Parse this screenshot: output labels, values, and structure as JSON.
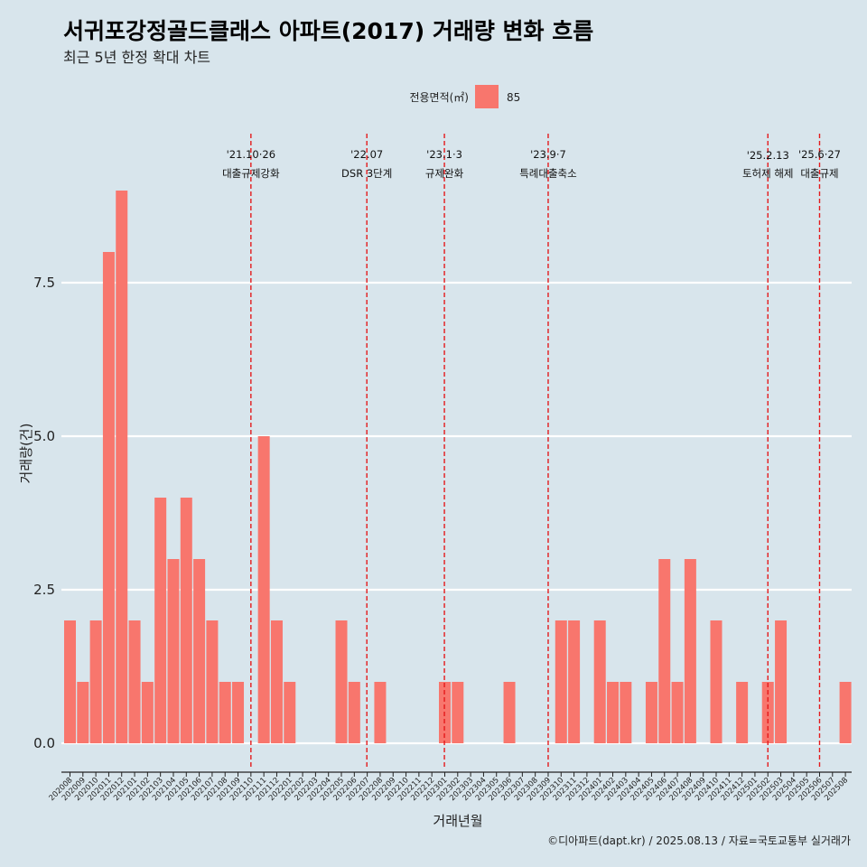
{
  "chart_data": {
    "type": "bar",
    "title": "서귀포강정골드클래스 아파트(2017) 거래량 변화 흐름",
    "subtitle": "최근 5년 한정 확대 차트",
    "xlabel": "거래년월",
    "ylabel": "거래량(건)",
    "ylim": [
      -0.45,
      9.6
    ],
    "yticks": [
      0.0,
      2.5,
      5.0,
      7.5
    ],
    "ytick_labels": [
      "0.0",
      "2.5",
      "5.0",
      "7.5"
    ],
    "grid": "horizontal",
    "legend": {
      "title": "전용면적(㎡)",
      "position": "top",
      "entries": [
        {
          "label": "85",
          "color": "#f8766d"
        }
      ]
    },
    "bar_color": "#f8766d",
    "categories": [
      "202008",
      "202009",
      "202010",
      "202011",
      "202012",
      "202101",
      "202102",
      "202103",
      "202104",
      "202105",
      "202106",
      "202107",
      "202108",
      "202109",
      "202110",
      "202111",
      "202112",
      "202201",
      "202202",
      "202203",
      "202204",
      "202205",
      "202206",
      "202207",
      "202208",
      "202209",
      "202210",
      "202211",
      "202212",
      "202301",
      "202302",
      "202303",
      "202304",
      "202305",
      "202306",
      "202307",
      "202308",
      "202309",
      "202310",
      "202311",
      "202312",
      "202401",
      "202402",
      "202403",
      "202404",
      "202405",
      "202406",
      "202407",
      "202408",
      "202409",
      "202410",
      "202411",
      "202412",
      "202501",
      "202502",
      "202503",
      "202504",
      "202505",
      "202506",
      "202507",
      "202508"
    ],
    "values": [
      2,
      1,
      2,
      8,
      9,
      2,
      1,
      4,
      3,
      4,
      3,
      2,
      1,
      1,
      0,
      5,
      2,
      1,
      0,
      0,
      0,
      2,
      1,
      0,
      1,
      0,
      0,
      0,
      0,
      1,
      1,
      0,
      0,
      0,
      1,
      0,
      0,
      0,
      2,
      2,
      0,
      2,
      1,
      1,
      0,
      1,
      3,
      1,
      3,
      0,
      2,
      0,
      1,
      0,
      1,
      2,
      0,
      0,
      0,
      0,
      1
    ],
    "annotations": [
      {
        "x_pos": 14.0,
        "date": "'21.10·26",
        "label": "대출규제강화"
      },
      {
        "x_pos": 22.97,
        "date": "'22.07",
        "label": "DSR 3단계"
      },
      {
        "x_pos": 28.97,
        "date": "'23.1·3",
        "label": "규제완화"
      },
      {
        "x_pos": 37.0,
        "date": "'23.9·7",
        "label": "특례대출축소"
      },
      {
        "x_pos": 54.0,
        "date": "'25.2.13",
        "label": "토허제 해제"
      },
      {
        "x_pos": 58.0,
        "date": "'25.6·27",
        "label": "대출규제"
      }
    ],
    "annotation_color": "#e41a1c",
    "caption": "©디아파트(dapt.kr) / 2025.08.13 / 자료=국토교통부 실거래가"
  }
}
